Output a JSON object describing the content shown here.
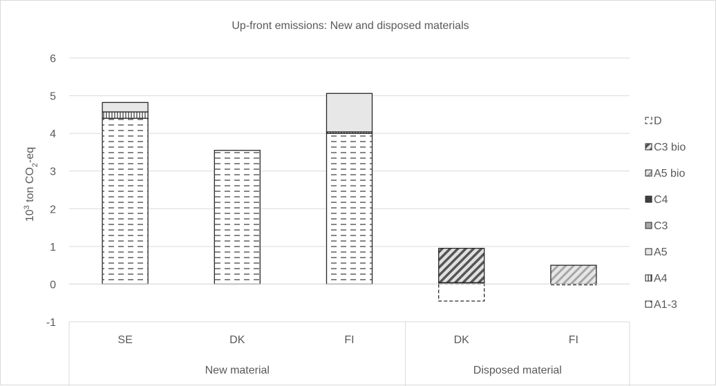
{
  "chart_data": {
    "type": "bar",
    "stacked": true,
    "title": "Up-front emissions: New and disposed materials",
    "ylabel": "10³ ton CO₂-eq",
    "ylabel_parts": [
      "10",
      "3",
      " ton CO",
      "2",
      "-eq"
    ],
    "ylim": [
      -1,
      6
    ],
    "yticks": [
      -1,
      0,
      1,
      2,
      3,
      4,
      5,
      6
    ],
    "grid": true,
    "legend_position": "right",
    "categories": [
      "SE",
      "DK",
      "FI",
      "DK",
      "FI"
    ],
    "groups": [
      {
        "label": "New material",
        "categories": [
          0,
          1,
          2
        ]
      },
      {
        "label": "Disposed material",
        "categories": [
          3,
          4
        ]
      }
    ],
    "legend_order": [
      "D",
      "C3 bio",
      "A5 bio",
      "C4",
      "C3",
      "A5",
      "A4",
      "A1-3"
    ],
    "series": [
      {
        "name": "A1-3",
        "values": [
          4.4,
          3.55,
          4.0,
          0,
          0
        ],
        "pattern": "dash"
      },
      {
        "name": "A4",
        "values": [
          0.17,
          0,
          0.04,
          0,
          0
        ],
        "pattern": "vert"
      },
      {
        "name": "A5",
        "values": [
          0.25,
          0,
          1.02,
          0,
          0
        ],
        "pattern": "lightgray"
      },
      {
        "name": "C3",
        "values": [
          0,
          0,
          0,
          0.04,
          0
        ],
        "pattern": "gray"
      },
      {
        "name": "C4",
        "values": [
          0,
          0,
          0,
          0,
          0
        ],
        "pattern": "darkgray"
      },
      {
        "name": "A5 bio",
        "values": [
          0,
          0,
          0,
          0,
          0.5
        ],
        "pattern": "diaglight"
      },
      {
        "name": "C3 bio",
        "values": [
          0,
          0,
          0,
          0.91,
          0
        ],
        "pattern": "diagdark"
      },
      {
        "name": "D",
        "values": [
          0,
          0,
          0,
          -0.45,
          -0.02
        ],
        "pattern": "dashed-outline"
      }
    ]
  }
}
